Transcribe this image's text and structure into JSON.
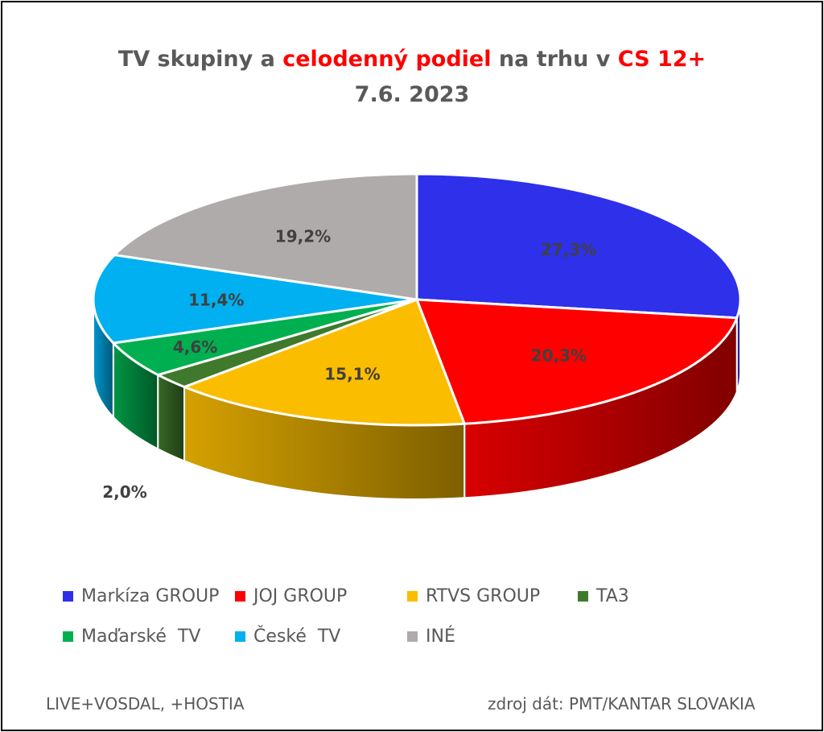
{
  "title": {
    "part1": "TV skupiny a ",
    "highlight1": "celodenný podiel",
    "part2": " na trhu v ",
    "highlight2": "CS 12+",
    "line2": "7.6. 2023"
  },
  "colors": {
    "title_text": "#595959",
    "title_highlight": "#ff0000"
  },
  "chart_data": {
    "type": "pie",
    "style": "3d",
    "title": "TV skupiny a celodenný podiel na trhu v CS 12+ 7.6. 2023",
    "legend_position": "bottom",
    "categories": [
      "Markíza GROUP",
      "JOJ GROUP",
      "RTVS GROUP",
      "TA3",
      "Maďarské  TV",
      "České  TV",
      "INÉ"
    ],
    "values": [
      27.3,
      20.3,
      15.1,
      2.0,
      4.6,
      11.4,
      19.2
    ],
    "labels": [
      "27,3%",
      "20,3%",
      "15,1%",
      "2,0%",
      "4,6%",
      "11,4%",
      "19,2%"
    ],
    "colors": [
      "#2e30ea",
      "#ff0000",
      "#fbbd00",
      "#3f7a2c",
      "#00b050",
      "#00b0f0",
      "#afabab"
    ]
  },
  "footer": {
    "left": "LIVE+VOSDAL, +HOSTIA",
    "right": "zdroj dát: PMT/KANTAR SLOVAKIA"
  }
}
